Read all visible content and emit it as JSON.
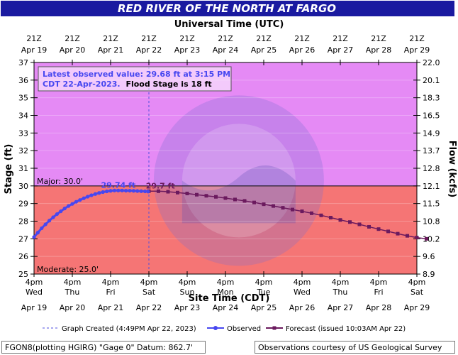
{
  "title": "RED RIVER OF THE NORTH AT FARGO",
  "colors": {
    "title_bg": "#1a1aa0",
    "title_text": "#ffffff",
    "major_zone": "#f57575",
    "upper_zone": "#e58af5",
    "observed": "#4747f0",
    "forecast": "#6b1a5e",
    "info_text": "#4747f0"
  },
  "info_box": {
    "line1": "Latest observed value: 29.68 ft at 3:15 PM",
    "line2a": "CDT 22-Apr-2023.",
    "line2b": "Flood Stage is 18 ft"
  },
  "footer": {
    "left": "FGON8(plotting HGIRG) \"Gage 0\" Datum: 862.7'",
    "right": "Observations courtesy of US Geological Survey"
  },
  "chart_data": {
    "type": "line",
    "title": "RED RIVER OF THE NORTH AT FARGO",
    "top_axis_title": "Universal Time (UTC)",
    "bottom_axis_title": "Site Time (CDT)",
    "ylabel_left": "Stage (ft)",
    "ylabel_right": "Flow (kcfs)",
    "ylim": [
      25,
      37
    ],
    "y_ticks": [
      25,
      26,
      27,
      28,
      29,
      30,
      31,
      32,
      33,
      34,
      35,
      36,
      37
    ],
    "x_range_days": [
      0,
      10
    ],
    "top_ticks": [
      {
        "hour": "21Z",
        "date": "Apr 19"
      },
      {
        "hour": "21Z",
        "date": "Apr 20"
      },
      {
        "hour": "21Z",
        "date": "Apr 21"
      },
      {
        "hour": "21Z",
        "date": "Apr 22"
      },
      {
        "hour": "21Z",
        "date": "Apr 23"
      },
      {
        "hour": "21Z",
        "date": "Apr 24"
      },
      {
        "hour": "21Z",
        "date": "Apr 25"
      },
      {
        "hour": "21Z",
        "date": "Apr 26"
      },
      {
        "hour": "21Z",
        "date": "Apr 27"
      },
      {
        "hour": "21Z",
        "date": "Apr 28"
      },
      {
        "hour": "21Z",
        "date": "Apr 29"
      }
    ],
    "bottom_ticks": [
      {
        "time": "4pm",
        "day": "Wed",
        "date": "Apr 19"
      },
      {
        "time": "4pm",
        "day": "Thu",
        "date": "Apr 20"
      },
      {
        "time": "4pm",
        "day": "Fri",
        "date": "Apr 21"
      },
      {
        "time": "4pm",
        "day": "Sat",
        "date": "Apr 22"
      },
      {
        "time": "4pm",
        "day": "Sun",
        "date": "Apr 23"
      },
      {
        "time": "4pm",
        "day": "Mon",
        "date": "Apr 24"
      },
      {
        "time": "4pm",
        "day": "Tue",
        "date": "Apr 25"
      },
      {
        "time": "4pm",
        "day": "Wed",
        "date": "Apr 26"
      },
      {
        "time": "4pm",
        "day": "Thu",
        "date": "Apr 27"
      },
      {
        "time": "4pm",
        "day": "Fri",
        "date": "Apr 28"
      },
      {
        "time": "4pm",
        "day": "Sat",
        "date": "Apr 29"
      }
    ],
    "flow_ticks": [
      {
        "stage": 25.0,
        "label": "8.9"
      },
      {
        "stage": 26.0,
        "label": "9.6"
      },
      {
        "stage": 27.0,
        "label": "10.2"
      },
      {
        "stage": 28.0,
        "label": "10.8"
      },
      {
        "stage": 29.0,
        "label": "11.5"
      },
      {
        "stage": 30.0,
        "label": "12.1"
      },
      {
        "stage": 31.0,
        "label": "12.8"
      },
      {
        "stage": 32.0,
        "label": "13.7"
      },
      {
        "stage": 33.0,
        "label": "14.9"
      },
      {
        "stage": 34.0,
        "label": "16.5"
      },
      {
        "stage": 35.0,
        "label": "18.3"
      },
      {
        "stage": 36.0,
        "label": "20.1"
      },
      {
        "stage": 37.0,
        "label": "22.0"
      }
    ],
    "thresholds": [
      {
        "name": "Major",
        "value": 30.0,
        "label": "Major: 30.0'"
      },
      {
        "name": "Moderate",
        "value": 25.0,
        "label": "Moderate: 25.0'"
      }
    ],
    "graph_created_day": 3.0,
    "series": [
      {
        "name": "Observed",
        "x": [
          0,
          0.1,
          0.2,
          0.3,
          0.4,
          0.5,
          0.6,
          0.7,
          0.8,
          0.9,
          1.0,
          1.1,
          1.2,
          1.3,
          1.4,
          1.5,
          1.6,
          1.7,
          1.8,
          1.9,
          2.0,
          2.1,
          2.2,
          2.3,
          2.4,
          2.5,
          2.6,
          2.7,
          2.8,
          2.9,
          2.98
        ],
        "values": [
          27.1,
          27.35,
          27.6,
          27.82,
          28.03,
          28.22,
          28.4,
          28.56,
          28.72,
          28.86,
          28.98,
          29.1,
          29.2,
          29.3,
          29.39,
          29.47,
          29.54,
          29.6,
          29.65,
          29.69,
          29.72,
          29.74,
          29.74,
          29.74,
          29.73,
          29.73,
          29.72,
          29.71,
          29.7,
          29.69,
          29.68
        ]
      },
      {
        "name": "Forecast",
        "x": [
          3.0,
          3.25,
          3.5,
          3.75,
          4.0,
          4.25,
          4.5,
          4.75,
          5.0,
          5.25,
          5.5,
          5.75,
          6.0,
          6.25,
          6.5,
          6.75,
          7.0,
          7.25,
          7.5,
          7.75,
          8.0,
          8.25,
          8.5,
          8.75,
          9.0,
          9.25,
          9.5,
          9.75,
          10.0,
          10.25
        ],
        "values": [
          29.7,
          29.7,
          29.67,
          29.62,
          29.57,
          29.5,
          29.44,
          29.38,
          29.31,
          29.23,
          29.15,
          29.06,
          28.96,
          28.86,
          28.76,
          28.66,
          28.56,
          28.45,
          28.33,
          28.2,
          28.07,
          27.95,
          27.82,
          27.68,
          27.55,
          27.42,
          27.29,
          27.17,
          27.07,
          27.0
        ]
      }
    ],
    "annotations": [
      {
        "text": "29.74 ft",
        "x": 2.2,
        "y": 29.74,
        "series": "Observed"
      },
      {
        "text": "29.7 ft",
        "x": 3.3,
        "y": 29.7,
        "series": "Forecast"
      }
    ],
    "legend": [
      {
        "label": "Graph Created (4:49PM Apr 22, 2023)",
        "style": "dashed"
      },
      {
        "label": "Observed",
        "style": "observed"
      },
      {
        "label": "Forecast (issued 10:03AM Apr 22)",
        "style": "forecast"
      }
    ]
  }
}
